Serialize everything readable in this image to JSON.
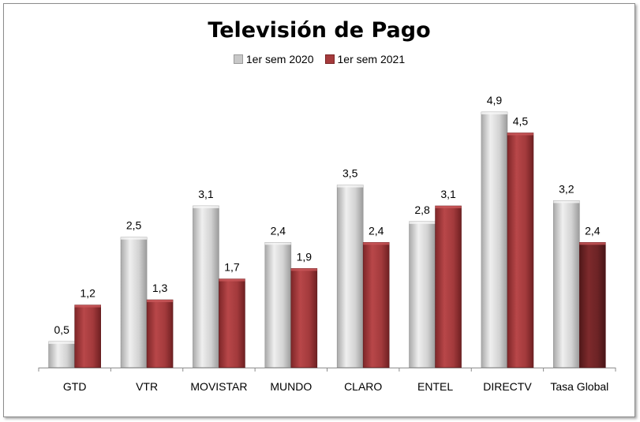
{
  "chart_data": {
    "type": "bar",
    "title": "Televisión de Pago",
    "categories": [
      "GTD",
      "VTR",
      "MOVISTAR",
      "MUNDO",
      "CLARO",
      "ENTEL",
      "DIRECTV",
      "Tasa Global"
    ],
    "series": [
      {
        "name": "1er sem 2020",
        "values": [
          0.5,
          2.5,
          3.1,
          2.4,
          3.5,
          2.8,
          4.9,
          3.2
        ],
        "color": "#c8c8c8"
      },
      {
        "name": "1er sem 2021",
        "values": [
          1.2,
          1.3,
          1.7,
          1.9,
          2.4,
          3.1,
          4.5,
          2.4
        ],
        "color": "#a53a3c",
        "highlight_last_color": "#6e2527"
      }
    ],
    "value_labels": [
      [
        "0,5",
        "2,5",
        "3,1",
        "2,4",
        "3,5",
        "2,8",
        "4,9",
        "3,2"
      ],
      [
        "1,2",
        "1,3",
        "1,7",
        "1,9",
        "2,4",
        "3,1",
        "4,5",
        "2,4"
      ]
    ],
    "ylim": [
      0,
      5
    ],
    "grid": false,
    "legend_position": "top-center"
  }
}
